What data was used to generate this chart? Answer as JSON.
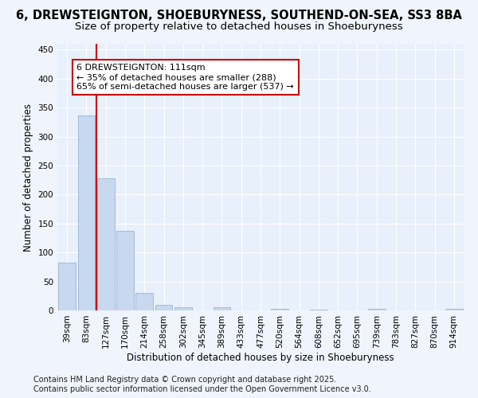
{
  "title_line1": "6, DREWSTEIGNTON, SHOEBURYNESS, SOUTHEND-ON-SEA, SS3 8BA",
  "title_line2": "Size of property relative to detached houses in Shoeburyness",
  "xlabel": "Distribution of detached houses by size in Shoeburyness",
  "ylabel": "Number of detached properties",
  "categories": [
    "39sqm",
    "83sqm",
    "127sqm",
    "170sqm",
    "214sqm",
    "258sqm",
    "302sqm",
    "345sqm",
    "389sqm",
    "433sqm",
    "477sqm",
    "520sqm",
    "564sqm",
    "608sqm",
    "652sqm",
    "695sqm",
    "739sqm",
    "783sqm",
    "827sqm",
    "870sqm",
    "914sqm"
  ],
  "values": [
    83,
    337,
    228,
    138,
    30,
    10,
    5,
    0,
    5,
    0,
    0,
    3,
    0,
    2,
    0,
    0,
    3,
    0,
    0,
    0,
    3
  ],
  "bar_color": "#c8d8ee",
  "bar_edge_color": "#9ab4d4",
  "vline_color": "#cc0000",
  "annotation_text": "6 DREWSTEIGNTON: 111sqm\n← 35% of detached houses are smaller (288)\n65% of semi-detached houses are larger (537) →",
  "annotation_box_color": "#cc0000",
  "ylim": [
    0,
    460
  ],
  "yticks": [
    0,
    50,
    100,
    150,
    200,
    250,
    300,
    350,
    400,
    450
  ],
  "bg_color": "#f0f4fc",
  "plot_bg_color": "#e8f0fc",
  "footer_line1": "Contains HM Land Registry data © Crown copyright and database right 2025.",
  "footer_line2": "Contains public sector information licensed under the Open Government Licence v3.0.",
  "title1_fontsize": 10.5,
  "title2_fontsize": 9.5,
  "axis_label_fontsize": 8.5,
  "tick_fontsize": 7.5,
  "annot_fontsize": 8,
  "footer_fontsize": 7
}
